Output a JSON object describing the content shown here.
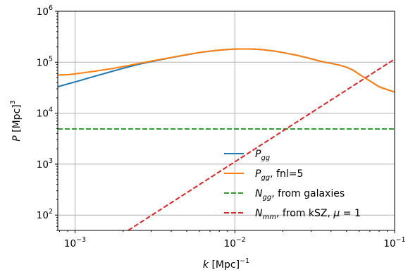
{
  "chart_data": {
    "type": "line",
    "xscale": "log",
    "yscale": "log",
    "xlim": [
      0.00078,
      0.1
    ],
    "ylim": [
      50,
      1000000
    ],
    "grid": true,
    "legend_position": "lower-right",
    "xlabel": {
      "italic": "k",
      "rest": " [Mpc]",
      "sup": "−1"
    },
    "ylabel": {
      "italic": "P",
      "rest": " [Mpc]",
      "sup": "3"
    },
    "x_ticks": [
      {
        "value": 0.001,
        "base": "10",
        "exp": "−3"
      },
      {
        "value": 0.01,
        "base": "10",
        "exp": "−2"
      },
      {
        "value": 0.1,
        "base": "10",
        "exp": "−1"
      }
    ],
    "y_ticks": [
      {
        "value": 100,
        "base": "10",
        "exp": "2"
      },
      {
        "value": 1000,
        "base": "10",
        "exp": "3"
      },
      {
        "value": 10000,
        "base": "10",
        "exp": "4"
      },
      {
        "value": 100000,
        "base": "10",
        "exp": "5"
      },
      {
        "value": 1000000,
        "base": "10",
        "exp": "6"
      }
    ],
    "series": [
      {
        "name": "P_gg",
        "legend": {
          "italic": "P",
          "sub": "gg",
          "rest": ""
        },
        "color": "#1f77b4",
        "dash": "solid",
        "points": [
          [
            0.00078,
            33000
          ],
          [
            0.0009,
            37500
          ],
          [
            0.001,
            41000
          ],
          [
            0.0013,
            52000
          ],
          [
            0.0017,
            66000
          ],
          [
            0.002,
            76000
          ],
          [
            0.0025,
            91000
          ],
          [
            0.003,
            103000
          ],
          [
            0.004,
            123000
          ],
          [
            0.005,
            140000
          ],
          [
            0.006,
            155000
          ],
          [
            0.007,
            165000
          ],
          [
            0.008,
            173000
          ],
          [
            0.009,
            178000
          ],
          [
            0.01,
            181000
          ],
          [
            0.011,
            182000
          ],
          [
            0.012,
            182000
          ],
          [
            0.013,
            181000
          ],
          [
            0.015,
            176000
          ],
          [
            0.018,
            164000
          ],
          [
            0.02,
            155000
          ],
          [
            0.025,
            135000
          ],
          [
            0.03,
            117000
          ],
          [
            0.035,
            103000
          ],
          [
            0.04,
            95000
          ],
          [
            0.045,
            88000
          ],
          [
            0.05,
            80000
          ],
          [
            0.055,
            70000
          ],
          [
            0.06,
            58000
          ],
          [
            0.07,
            43000
          ],
          [
            0.08,
            33000
          ],
          [
            0.09,
            29000
          ],
          [
            0.1,
            26000
          ]
        ]
      },
      {
        "name": "P_gg, fnl=5",
        "legend": {
          "italic": "P",
          "sub": "gg",
          "rest": ", fnl=5"
        },
        "color": "#ff7f0e",
        "dash": "solid",
        "points": [
          [
            0.00078,
            56000
          ],
          [
            0.0009,
            57000
          ],
          [
            0.001,
            59000
          ],
          [
            0.0013,
            66000
          ],
          [
            0.0017,
            75000
          ],
          [
            0.002,
            82000
          ],
          [
            0.0025,
            94000
          ],
          [
            0.003,
            105000
          ],
          [
            0.004,
            124000
          ],
          [
            0.005,
            141000
          ],
          [
            0.006,
            155000
          ],
          [
            0.007,
            165000
          ],
          [
            0.008,
            173000
          ],
          [
            0.009,
            178000
          ],
          [
            0.01,
            181000
          ],
          [
            0.011,
            182000
          ],
          [
            0.012,
            182000
          ],
          [
            0.013,
            181000
          ],
          [
            0.015,
            176000
          ],
          [
            0.018,
            164000
          ],
          [
            0.02,
            155000
          ],
          [
            0.025,
            135000
          ],
          [
            0.03,
            117000
          ],
          [
            0.035,
            103000
          ],
          [
            0.04,
            95000
          ],
          [
            0.045,
            88000
          ],
          [
            0.05,
            80000
          ],
          [
            0.055,
            70000
          ],
          [
            0.06,
            58000
          ],
          [
            0.07,
            43000
          ],
          [
            0.08,
            33000
          ],
          [
            0.09,
            29000
          ],
          [
            0.1,
            26000
          ]
        ]
      },
      {
        "name": "N_gg, from galaxies",
        "legend": {
          "italic": "N",
          "sub": "gg",
          "rest": ", from galaxies"
        },
        "color": "#2ca02c",
        "dash": "dashed",
        "points": [
          [
            0.00078,
            4900
          ],
          [
            0.1,
            4900
          ]
        ]
      },
      {
        "name": "N_mm, from kSZ, μ=1",
        "legend": {
          "italic": "N",
          "sub": "mm",
          "rest": ", from kSZ, ",
          "italic2": "μ",
          "rest2": " = 1"
        },
        "color": "#d62728",
        "dash": "dashed",
        "points": [
          [
            0.00215,
            50
          ],
          [
            0.1,
            115000
          ]
        ]
      }
    ]
  }
}
